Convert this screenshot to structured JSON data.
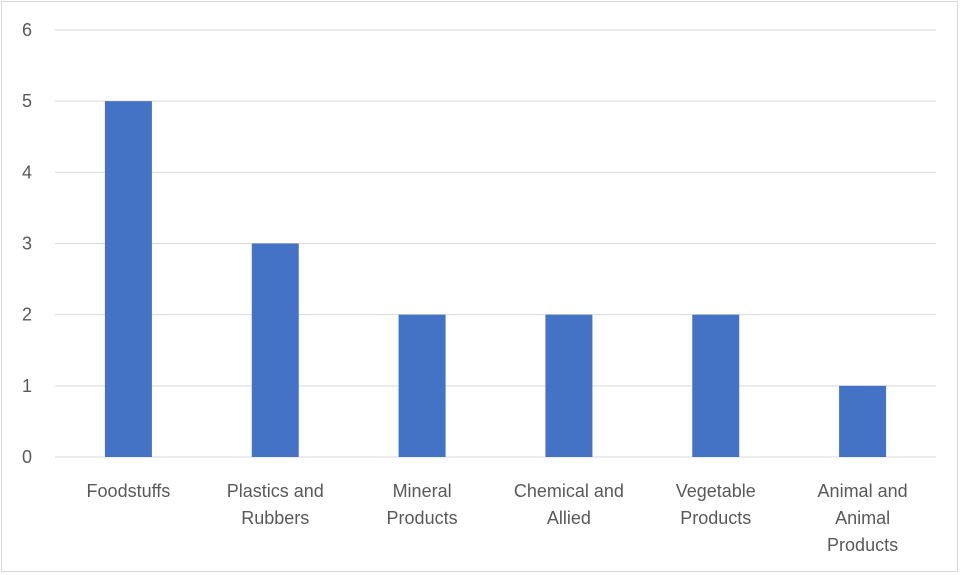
{
  "chart_data": {
    "type": "bar",
    "title": "",
    "xlabel": "",
    "ylabel": "",
    "categories": [
      [
        "Foodstuffs"
      ],
      [
        "Plastics and",
        "Rubbers"
      ],
      [
        "Mineral",
        "Products"
      ],
      [
        "Chemical and",
        "Allied"
      ],
      [
        "Vegetable",
        "Products"
      ],
      [
        "Animal and",
        "Animal",
        "Products"
      ]
    ],
    "values": [
      5,
      3,
      2,
      2,
      2,
      1
    ],
    "ylim": [
      0,
      6
    ],
    "yticks": [
      "0",
      "1",
      "2",
      "3",
      "4",
      "5",
      "6"
    ],
    "grid": true,
    "bar_color": "#4472C4",
    "grid_color": "#D9D9D9"
  }
}
